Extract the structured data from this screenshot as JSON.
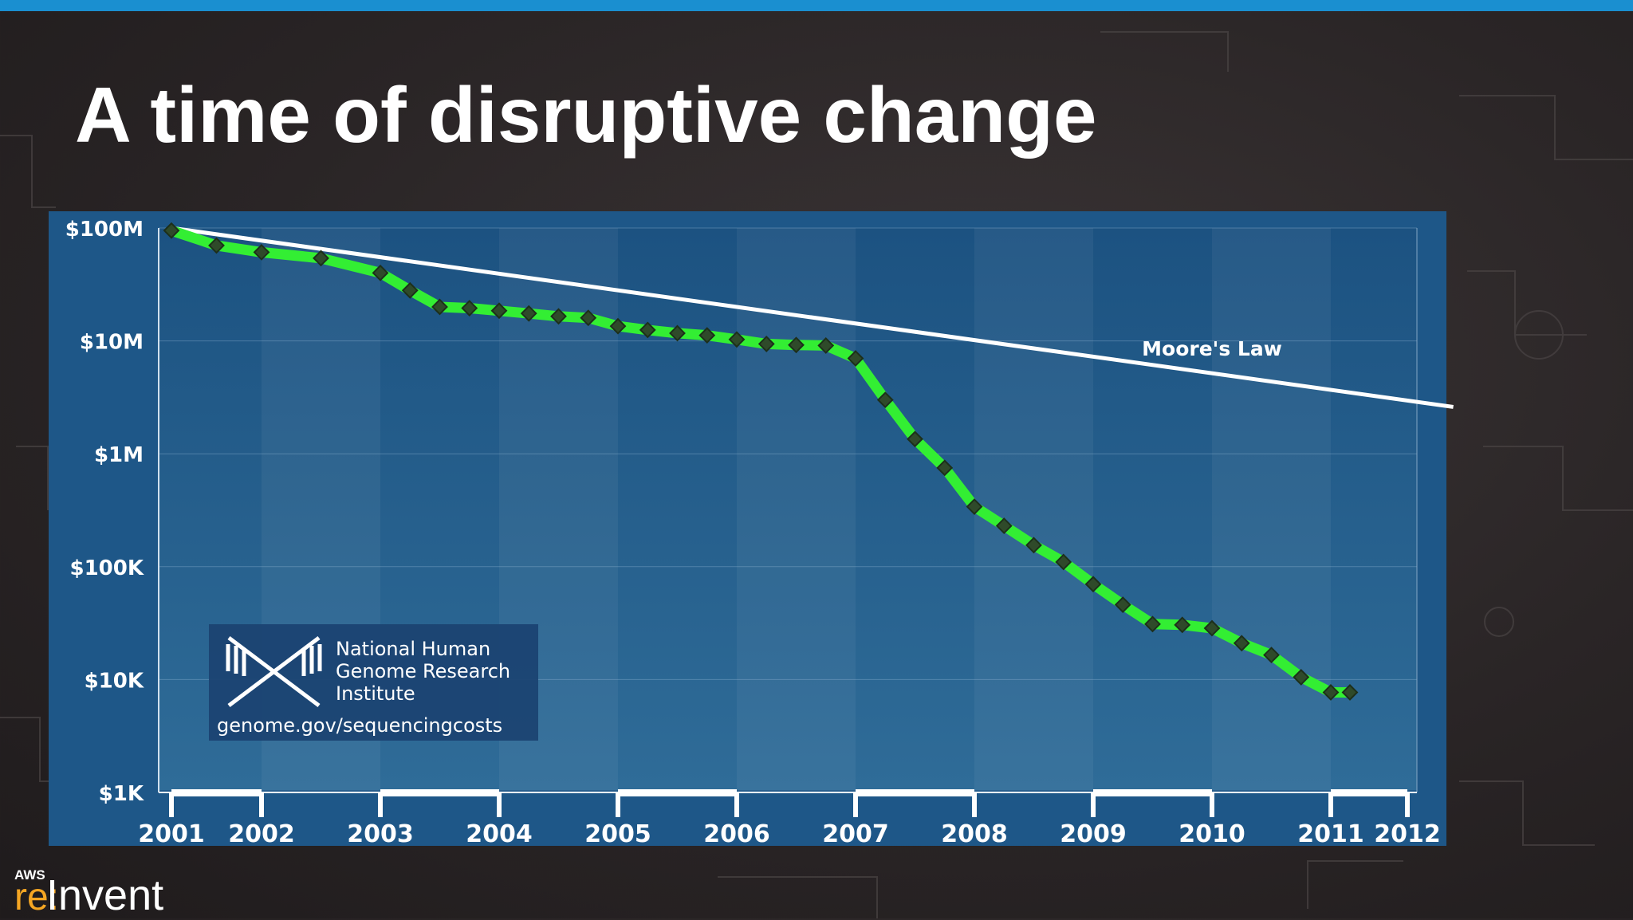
{
  "slide": {
    "title": "A time of disruptive change",
    "accent_color": "#1a8fd0"
  },
  "branding": {
    "aws_label": "AWS",
    "re_label": "re:",
    "invent_label": "Invent",
    "re_color": "#f5a623"
  },
  "nhgri": {
    "line1": "National Human",
    "line2": "Genome Research",
    "line3": "Institute",
    "url": "genome.gov/sequencingcosts",
    "icon": "nhgri-dna-logo"
  },
  "chart_data": {
    "type": "line",
    "y_scale": "log",
    "ylim": [
      1000,
      100000000
    ],
    "y_ticks": [
      {
        "value": 100000000,
        "label": "$100M"
      },
      {
        "value": 10000000,
        "label": "$10M"
      },
      {
        "value": 1000000,
        "label": "$1M"
      },
      {
        "value": 100000,
        "label": "$100K"
      },
      {
        "value": 10000,
        "label": "$10K"
      },
      {
        "value": 1000,
        "label": "$1K"
      }
    ],
    "x_ticks": [
      "2001",
      "2002",
      "2003",
      "2004",
      "2005",
      "2006",
      "2007",
      "2008",
      "2009",
      "2010",
      "2011",
      "2012"
    ],
    "xlim": [
      2001.0,
      2012.6
    ],
    "grid": "horizontal",
    "series": [
      {
        "name": "",
        "color": "#33ee33",
        "marker": "diamond",
        "points": [
          [
            2001.0,
            95000000
          ],
          [
            2001.5,
            70000000
          ],
          [
            2002.0,
            61000000
          ],
          [
            2002.5,
            54000000
          ],
          [
            2003.0,
            40000000
          ],
          [
            2003.25,
            28000000
          ],
          [
            2003.5,
            20000000
          ],
          [
            2003.75,
            19500000
          ],
          [
            2004.0,
            18500000
          ],
          [
            2004.25,
            17500000
          ],
          [
            2004.5,
            16500000
          ],
          [
            2004.75,
            16000000
          ],
          [
            2005.0,
            13500000
          ],
          [
            2005.25,
            12500000
          ],
          [
            2005.5,
            11700000
          ],
          [
            2005.75,
            11200000
          ],
          [
            2006.0,
            10300000
          ],
          [
            2006.25,
            9400000
          ],
          [
            2006.5,
            9200000
          ],
          [
            2006.75,
            9100000
          ],
          [
            2007.0,
            7000000
          ],
          [
            2007.25,
            3000000
          ],
          [
            2007.5,
            1350000
          ],
          [
            2007.75,
            750000
          ],
          [
            2008.0,
            340000
          ],
          [
            2008.25,
            230000
          ],
          [
            2008.5,
            155000
          ],
          [
            2008.75,
            110000
          ],
          [
            2009.0,
            70000
          ],
          [
            2009.25,
            46000
          ],
          [
            2009.5,
            31000
          ],
          [
            2009.75,
            30500
          ],
          [
            2010.0,
            28500
          ],
          [
            2010.25,
            21000
          ],
          [
            2010.5,
            16500
          ],
          [
            2010.75,
            10500
          ],
          [
            2011.0,
            7700
          ],
          [
            2011.25,
            7700
          ]
        ]
      },
      {
        "name": "Moore's Law",
        "color": "#ffffff",
        "marker": "none",
        "points": [
          [
            2001.0,
            100000000
          ],
          [
            2012.6,
            2600000
          ]
        ]
      }
    ]
  }
}
